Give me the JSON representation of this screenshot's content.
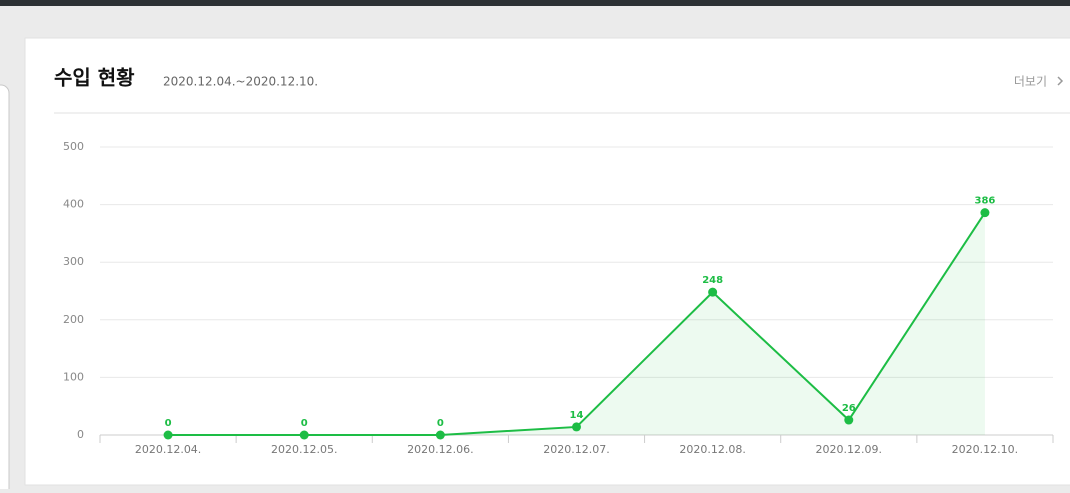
{
  "more_link": "더보기",
  "chart_data": {
    "type": "line",
    "title": "수입 현황",
    "subtitle": "2020.12.04.~2020.12.10.",
    "categories": [
      "2020.12.04.",
      "2020.12.05.",
      "2020.12.06.",
      "2020.12.07.",
      "2020.12.08.",
      "2020.12.09.",
      "2020.12.10."
    ],
    "values": [
      0,
      0,
      0,
      14,
      248,
      26,
      386
    ],
    "color": "#1dbd45",
    "area": true,
    "show_values": true,
    "ylim": [
      0,
      500
    ],
    "yticks": [
      0,
      100,
      200,
      300,
      400,
      500
    ],
    "grid": true
  }
}
